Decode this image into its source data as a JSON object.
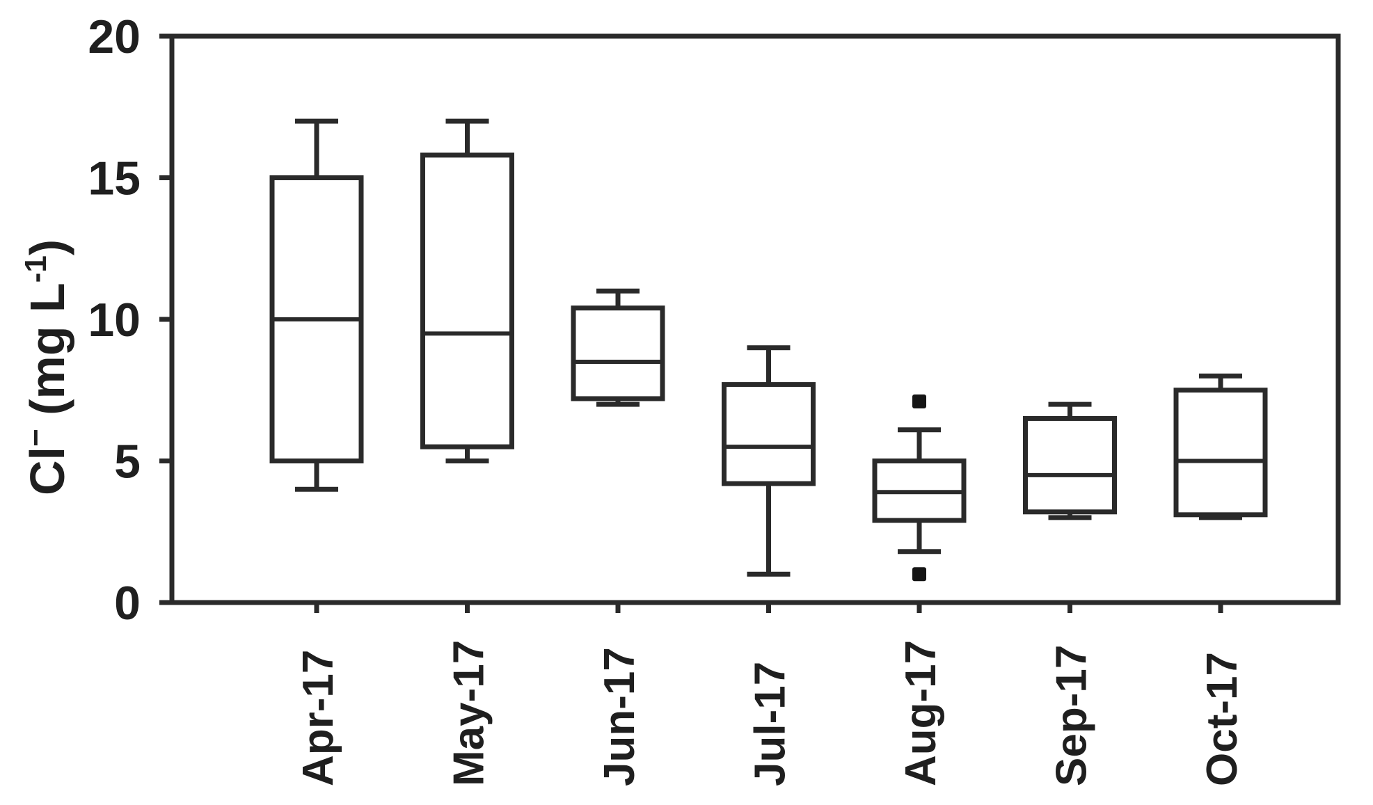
{
  "figure": {
    "background": "#ffffff"
  },
  "chart_data": {
    "type": "box",
    "title": "",
    "xlabel": "",
    "ylabel": "Cl⁻ (mg L⁻¹)",
    "ylabel_parts": {
      "base": "Cl",
      "sup1": "−",
      "mid": " (mg L",
      "sup2": "-1",
      "end": ")"
    },
    "ylim": [
      0,
      20
    ],
    "yticks": [
      0,
      5,
      10,
      15,
      20
    ],
    "grid": false,
    "legend_position": "none",
    "axis_color": "#2a2a2a",
    "box_fill": "#ffffff",
    "outlier_color": "#151515",
    "categories": [
      "Apr-17",
      "May-17",
      "Jun-17",
      "Jul-17",
      "Aug-17",
      "Sep-17",
      "Oct-17"
    ],
    "series": [
      {
        "category": "Apr-17",
        "whisker_low": 4,
        "q1": 5,
        "median": 10,
        "q3": 15,
        "whisker_high": 17,
        "outliers": []
      },
      {
        "category": "May-17",
        "whisker_low": 5,
        "q1": 5.5,
        "median": 9.5,
        "q3": 15.8,
        "whisker_high": 17,
        "outliers": []
      },
      {
        "category": "Jun-17",
        "whisker_low": 7,
        "q1": 7.2,
        "median": 8.5,
        "q3": 10.4,
        "whisker_high": 11,
        "outliers": []
      },
      {
        "category": "Jul-17",
        "whisker_low": 1,
        "q1": 4.2,
        "median": 5.5,
        "q3": 7.7,
        "whisker_high": 9,
        "outliers": []
      },
      {
        "category": "Aug-17",
        "whisker_low": 1.8,
        "q1": 2.9,
        "median": 3.9,
        "q3": 5,
        "whisker_high": 6.1,
        "outliers": [
          7.1,
          1
        ]
      },
      {
        "category": "Sep-17",
        "whisker_low": 3,
        "q1": 3.2,
        "median": 4.5,
        "q3": 6.5,
        "whisker_high": 7,
        "outliers": []
      },
      {
        "category": "Oct-17",
        "whisker_low": 3,
        "q1": 3.1,
        "median": 5,
        "q3": 7.5,
        "whisker_high": 8,
        "outliers": []
      }
    ]
  }
}
